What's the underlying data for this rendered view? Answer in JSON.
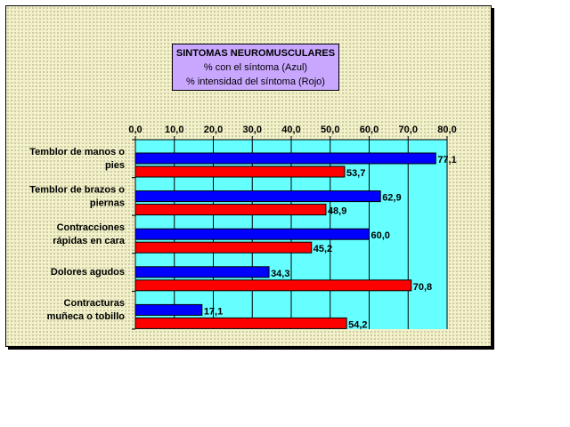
{
  "chart_data": {
    "type": "bar",
    "orientation": "horizontal",
    "title": "SINTOMAS NEUROMUSCULARES",
    "subtitle_lines": [
      "% con el síntoma (Azul)",
      "% intensidad del síntoma (Rojo)"
    ],
    "categories": [
      [
        "Temblor de manos o",
        "pies"
      ],
      [
        "Temblor de brazos o",
        "piernas"
      ],
      [
        "Contracciones",
        "rápidas en cara"
      ],
      [
        "Dolores agudos"
      ],
      [
        "Contracturas",
        "muñeca o tobillo"
      ]
    ],
    "series": [
      {
        "color": "#0000ff",
        "values": [
          77.1,
          62.9,
          60.0,
          34.3,
          17.1
        ],
        "labels": [
          "77,1",
          "62,9",
          "60,0",
          "34,3",
          "17,1"
        ]
      },
      {
        "color": "#ff0000",
        "values": [
          53.7,
          48.9,
          45.2,
          70.8,
          54.2
        ],
        "labels": [
          "53,7",
          "48,9",
          "45,2",
          "70,8",
          "54,2"
        ]
      }
    ],
    "xlim": [
      0,
      80
    ],
    "ticks": [
      0,
      10,
      20,
      30,
      40,
      50,
      60,
      70,
      80
    ],
    "tick_labels": [
      "0,0",
      "10,0",
      "20,0",
      "30,0",
      "40,0",
      "50,0",
      "60,0",
      "70,0",
      "80,0"
    ],
    "axis_position": "top",
    "grid": true,
    "plot_background": "#66ffff",
    "page_background": "#f2f1c9",
    "title_box_color": "#c9a7ff"
  }
}
